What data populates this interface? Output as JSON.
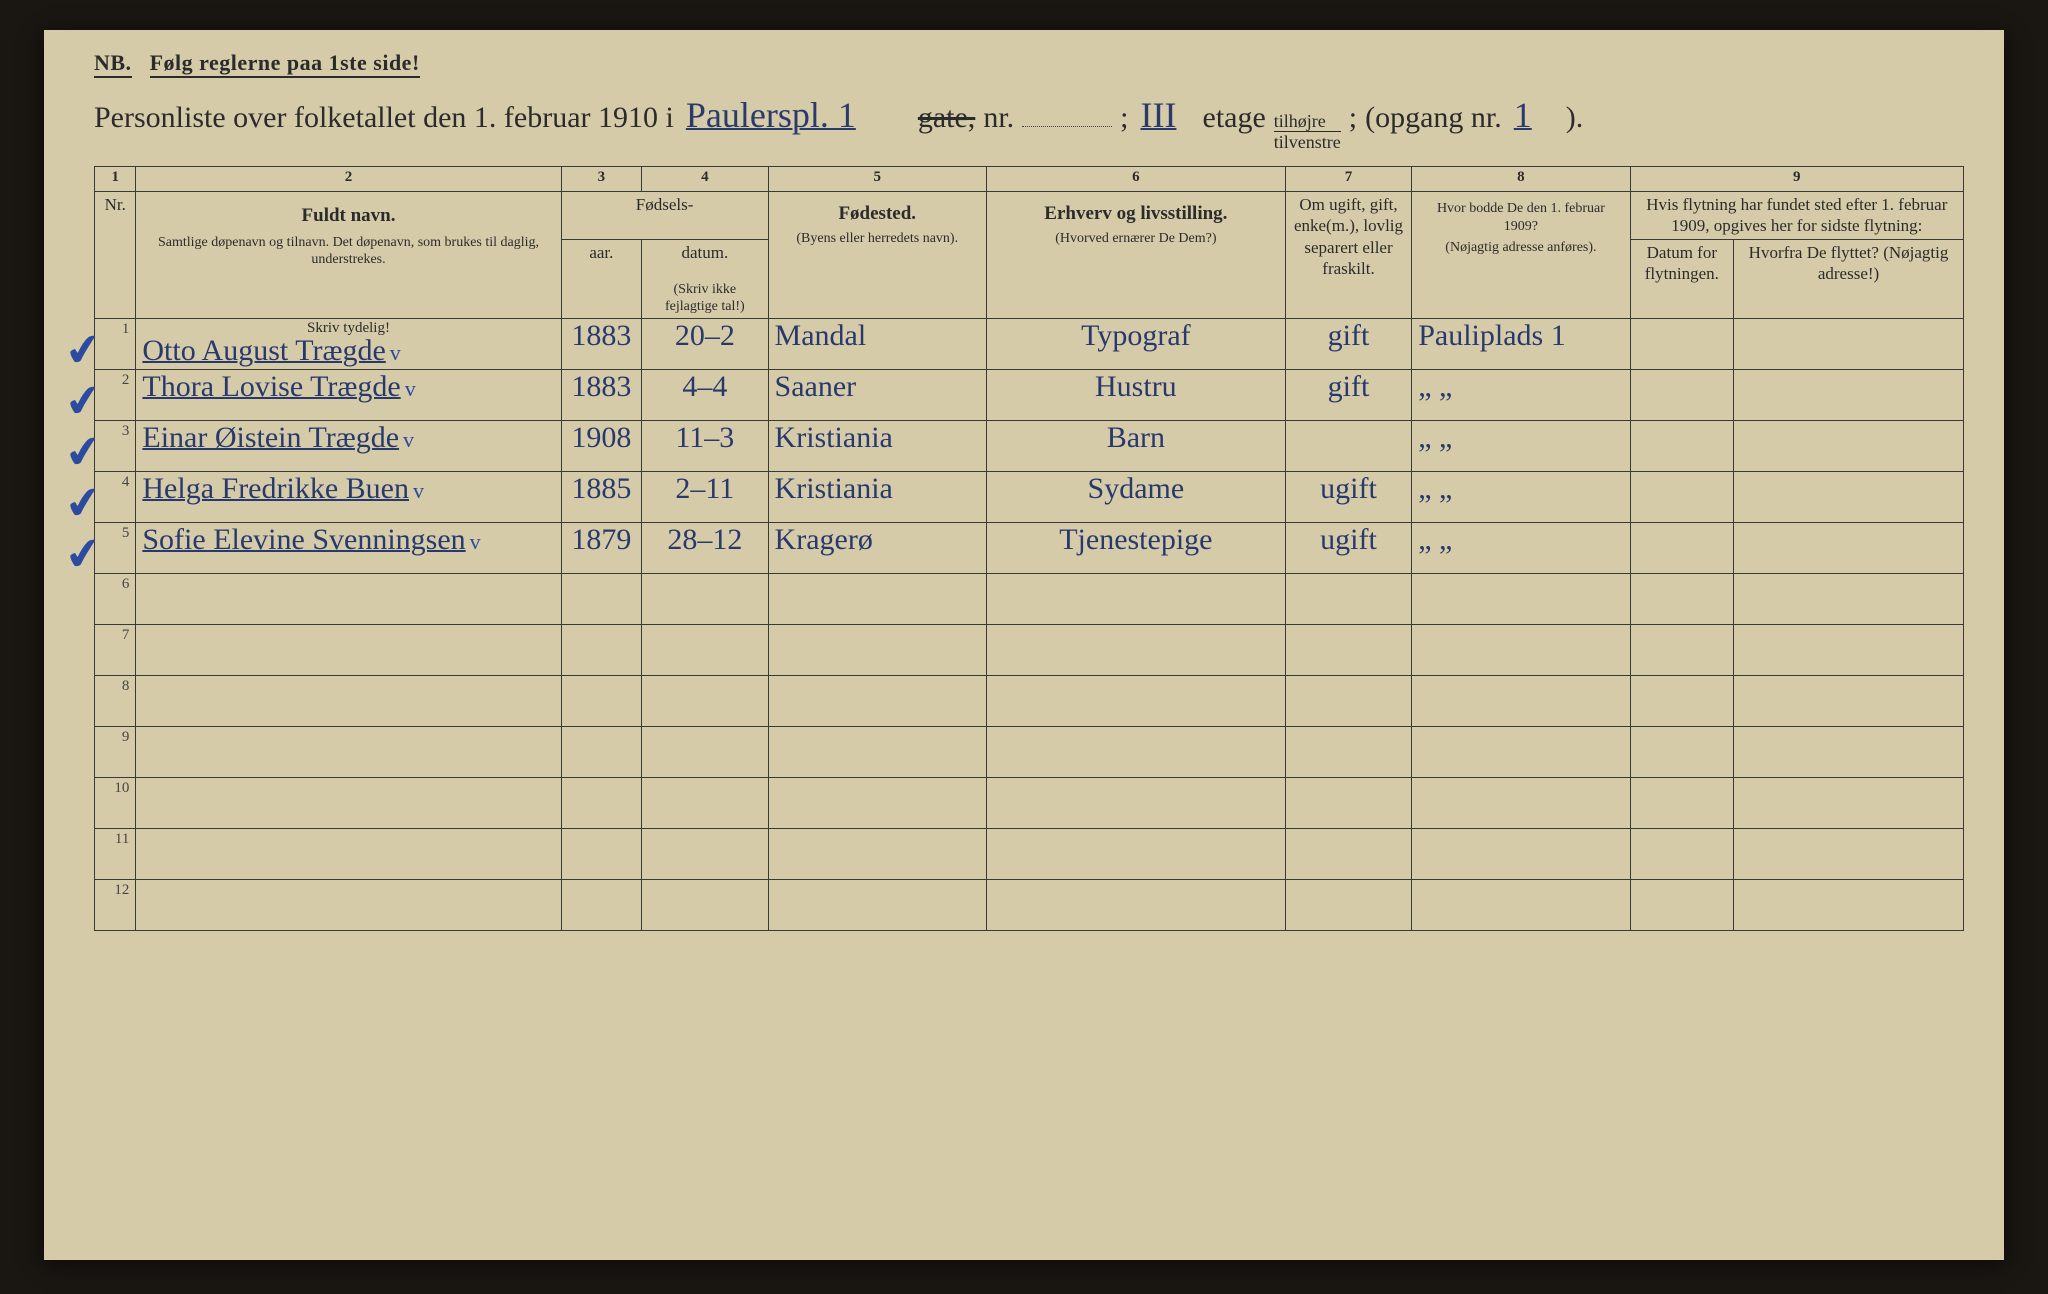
{
  "nb": {
    "label": "NB.",
    "text": "Følg reglerne paa 1ste side!"
  },
  "title": {
    "prefix": "Personliste over folketallet den 1. februar 1910 i",
    "street_hand": "Paulerspl. 1",
    "gate_strike": "gate,",
    "nr_label": "nr.",
    "semicolon": ";",
    "etage_hand": "III",
    "etage_label": "etage",
    "tilhojre": "tilhøjre",
    "tilvenstre": "tilvenstre",
    "semi2": ";",
    "opgang_label": "(opgang nr.",
    "opgang_hand": "1",
    "close": ")."
  },
  "colnums": [
    "1",
    "2",
    "3",
    "4",
    "5",
    "6",
    "7",
    "8",
    "9"
  ],
  "headers": {
    "nr": "Nr.",
    "name_big": "Fuldt navn.",
    "name_small": "Samtlige døpenavn og tilnavn. Det døpenavn, som brukes til daglig, understrekes.",
    "birth_top": "Fødsels-",
    "birth_year": "aar.",
    "birth_date": "datum.",
    "birth_small": "(Skriv ikke fejlagtige tal!)",
    "place_big": "Fødested.",
    "place_small": "(Byens eller herredets navn).",
    "occ_big": "Erhverv og livsstilling.",
    "occ_small": "(Hvorved ernærer De Dem?)",
    "marital": "Om ugift, gift, enke(m.), lovlig separert eller fraskilt.",
    "addr_big": "Hvor bodde De den 1. februar 1909?",
    "addr_small": "(Nøjagtig adresse anføres).",
    "move_top": "Hvis flytning har fundet sted efter 1. februar 1909, opgives her for sidste flytning:",
    "move_date": "Datum for flytningen.",
    "move_from": "Hvorfra De flyttet? (Nøjagtig adresse!)"
  },
  "skriv": "Skriv tydelig!",
  "rows": [
    {
      "n": "1",
      "check": "✓",
      "name": "Otto August Trægde",
      "v": "v",
      "year": "1883",
      "date": "20–2",
      "place": "Mandal",
      "occ": "Typograf",
      "mar": "gift",
      "addr": "Pauliplads 1"
    },
    {
      "n": "2",
      "check": "✓",
      "name": "Thora Lovise Trægde",
      "v": "v",
      "year": "1883",
      "date": "4–4",
      "place": "Saaner",
      "occ": "Hustru",
      "mar": "gift",
      "addr": "„        „"
    },
    {
      "n": "3",
      "check": "✓",
      "name": "Einar Øistein Trægde",
      "v": "v",
      "year": "1908",
      "date": "11–3",
      "place": "Kristiania",
      "occ": "Barn",
      "mar": "",
      "addr": "„        „"
    },
    {
      "n": "4",
      "check": "✓",
      "name": "Helga Fredrikke Buen",
      "v": "v",
      "year": "1885",
      "date": "2–11",
      "place": "Kristiania",
      "occ": "Sydame",
      "mar": "ugift",
      "addr": "„        „"
    },
    {
      "n": "5",
      "check": "✓",
      "name": "Sofie Elevine Svenningsen",
      "v": "v",
      "year": "1879",
      "date": "28–12",
      "place": "Kragerø",
      "occ": "Tjenestepige",
      "mar": "ugift",
      "addr": "„        „"
    },
    {
      "n": "6"
    },
    {
      "n": "7"
    },
    {
      "n": "8"
    },
    {
      "n": "9"
    },
    {
      "n": "10"
    },
    {
      "n": "11"
    },
    {
      "n": "12"
    }
  ]
}
